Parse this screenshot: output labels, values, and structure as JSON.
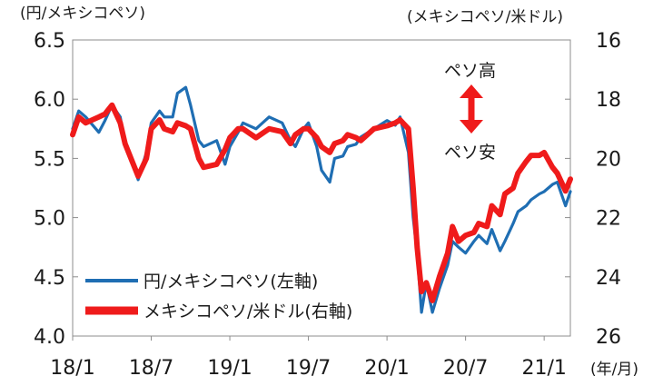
{
  "chart_data": {
    "type": "line",
    "title": "",
    "left_axis": {
      "unit_label": "(円/メキシコペソ)",
      "ylim": [
        4.0,
        6.5
      ],
      "ticks": [
        "6.5",
        "6.0",
        "5.5",
        "5.0",
        "4.5",
        "4.0"
      ]
    },
    "right_axis": {
      "unit_label": "(メキシコペソ/米ドル)",
      "ylim": [
        16,
        26
      ],
      "inverted": true,
      "ticks": [
        "16",
        "18",
        "20",
        "22",
        "24",
        "26"
      ]
    },
    "x_axis": {
      "unit_label": "(年/月)",
      "range": [
        "2018-01",
        "2021-03"
      ],
      "ticks": [
        "18/1",
        "18/7",
        "19/1",
        "19/7",
        "20/1",
        "20/7",
        "21/1"
      ]
    },
    "grid": false,
    "legend_position": "bottom-left",
    "annotations": {
      "up_label": "ペソ高",
      "down_label": "ペソ安"
    },
    "series": [
      {
        "name": "円/メキシコペソ(左軸)",
        "axis": "left",
        "color": "#1f6eb3",
        "points": [
          [
            "2018-01",
            5.75
          ],
          [
            "2018-01-15",
            5.9
          ],
          [
            "2018-02",
            5.85
          ],
          [
            "2018-03",
            5.72
          ],
          [
            "2018-03-15",
            5.82
          ],
          [
            "2018-04",
            5.95
          ],
          [
            "2018-04-20",
            5.85
          ],
          [
            "2018-05",
            5.62
          ],
          [
            "2018-05-20",
            5.45
          ],
          [
            "2018-06",
            5.32
          ],
          [
            "2018-06-20",
            5.55
          ],
          [
            "2018-07",
            5.8
          ],
          [
            "2018-07-20",
            5.9
          ],
          [
            "2018-08",
            5.85
          ],
          [
            "2018-08-20",
            5.85
          ],
          [
            "2018-09",
            6.05
          ],
          [
            "2018-09-20",
            6.1
          ],
          [
            "2018-10",
            5.95
          ],
          [
            "2018-10-20",
            5.65
          ],
          [
            "2018-11",
            5.6
          ],
          [
            "2018-12",
            5.65
          ],
          [
            "2018-12-20",
            5.45
          ],
          [
            "2019-01",
            5.6
          ],
          [
            "2019-01-20",
            5.72
          ],
          [
            "2019-02",
            5.8
          ],
          [
            "2019-03",
            5.75
          ],
          [
            "2019-04",
            5.85
          ],
          [
            "2019-05",
            5.8
          ],
          [
            "2019-05-20",
            5.65
          ],
          [
            "2019-06",
            5.6
          ],
          [
            "2019-06-20",
            5.75
          ],
          [
            "2019-07",
            5.8
          ],
          [
            "2019-07-20",
            5.6
          ],
          [
            "2019-08",
            5.4
          ],
          [
            "2019-08-20",
            5.3
          ],
          [
            "2019-09",
            5.5
          ],
          [
            "2019-09-20",
            5.52
          ],
          [
            "2019-10",
            5.6
          ],
          [
            "2019-10-20",
            5.62
          ],
          [
            "2019-11",
            5.68
          ],
          [
            "2019-12",
            5.75
          ],
          [
            "2020-01",
            5.82
          ],
          [
            "2020-01-20",
            5.78
          ],
          [
            "2020-02",
            5.85
          ],
          [
            "2020-02-20",
            5.55
          ],
          [
            "2020-03",
            5.0
          ],
          [
            "2020-03-10",
            4.7
          ],
          [
            "2020-03-20",
            4.2
          ],
          [
            "2020-04",
            4.45
          ],
          [
            "2020-04-15",
            4.2
          ],
          [
            "2020-05",
            4.4
          ],
          [
            "2020-05-20",
            4.6
          ],
          [
            "2020-06",
            4.8
          ],
          [
            "2020-06-15",
            4.75
          ],
          [
            "2020-07",
            4.7
          ],
          [
            "2020-07-20",
            4.8
          ],
          [
            "2020-08",
            4.85
          ],
          [
            "2020-08-20",
            4.78
          ],
          [
            "2020-09",
            4.9
          ],
          [
            "2020-09-20",
            4.72
          ],
          [
            "2020-10",
            4.8
          ],
          [
            "2020-10-20",
            4.95
          ],
          [
            "2020-11",
            5.05
          ],
          [
            "2020-11-20",
            5.1
          ],
          [
            "2020-12",
            5.15
          ],
          [
            "2020-12-20",
            5.2
          ],
          [
            "2021-01",
            5.22
          ],
          [
            "2021-01-20",
            5.28
          ],
          [
            "2021-02",
            5.3
          ],
          [
            "2021-02-20",
            5.1
          ],
          [
            "2021-03",
            5.22
          ]
        ]
      },
      {
        "name": "メキシコペソ/米ドル(右軸)",
        "axis": "right",
        "color": "#ef1b1b",
        "points": [
          [
            "2018-01",
            19.2
          ],
          [
            "2018-01-15",
            18.6
          ],
          [
            "2018-02",
            18.8
          ],
          [
            "2018-03",
            18.6
          ],
          [
            "2018-03-15",
            18.5
          ],
          [
            "2018-04",
            18.2
          ],
          [
            "2018-04-20",
            18.8
          ],
          [
            "2018-05",
            19.5
          ],
          [
            "2018-05-20",
            20.2
          ],
          [
            "2018-06",
            20.6
          ],
          [
            "2018-06-20",
            20.0
          ],
          [
            "2018-07",
            19.0
          ],
          [
            "2018-07-20",
            18.7
          ],
          [
            "2018-08",
            19.0
          ],
          [
            "2018-08-20",
            19.1
          ],
          [
            "2018-09",
            18.8
          ],
          [
            "2018-09-20",
            18.9
          ],
          [
            "2018-10",
            19.0
          ],
          [
            "2018-10-20",
            20.0
          ],
          [
            "2018-11",
            20.3
          ],
          [
            "2018-12",
            20.2
          ],
          [
            "2018-12-20",
            19.7
          ],
          [
            "2019-01",
            19.3
          ],
          [
            "2019-01-20",
            19.0
          ],
          [
            "2019-02",
            19.0
          ],
          [
            "2019-03",
            19.3
          ],
          [
            "2019-04",
            19.0
          ],
          [
            "2019-05",
            19.1
          ],
          [
            "2019-05-20",
            19.5
          ],
          [
            "2019-06",
            19.2
          ],
          [
            "2019-06-20",
            19.0
          ],
          [
            "2019-07",
            19.0
          ],
          [
            "2019-07-20",
            19.3
          ],
          [
            "2019-08",
            19.6
          ],
          [
            "2019-08-20",
            19.8
          ],
          [
            "2019-09",
            19.5
          ],
          [
            "2019-09-20",
            19.4
          ],
          [
            "2019-10",
            19.2
          ],
          [
            "2019-10-20",
            19.3
          ],
          [
            "2019-11",
            19.4
          ],
          [
            "2019-12",
            19.0
          ],
          [
            "2020-01",
            18.9
          ],
          [
            "2020-01-20",
            18.8
          ],
          [
            "2020-02",
            18.7
          ],
          [
            "2020-02-20",
            19.0
          ],
          [
            "2020-03",
            21.0
          ],
          [
            "2020-03-10",
            23.0
          ],
          [
            "2020-03-20",
            24.5
          ],
          [
            "2020-04",
            24.2
          ],
          [
            "2020-04-15",
            24.8
          ],
          [
            "2020-05",
            24.0
          ],
          [
            "2020-05-20",
            23.2
          ],
          [
            "2020-06",
            22.3
          ],
          [
            "2020-06-15",
            22.8
          ],
          [
            "2020-07",
            22.6
          ],
          [
            "2020-07-20",
            22.5
          ],
          [
            "2020-08",
            22.2
          ],
          [
            "2020-08-20",
            22.3
          ],
          [
            "2020-09",
            21.6
          ],
          [
            "2020-09-20",
            21.9
          ],
          [
            "2020-10",
            21.2
          ],
          [
            "2020-10-20",
            21.0
          ],
          [
            "2020-11",
            20.5
          ],
          [
            "2020-11-20",
            20.1
          ],
          [
            "2020-12",
            19.9
          ],
          [
            "2020-12-20",
            19.9
          ],
          [
            "2021-01",
            19.8
          ],
          [
            "2021-01-20",
            20.3
          ],
          [
            "2021-02",
            20.5
          ],
          [
            "2021-02-20",
            21.1
          ],
          [
            "2021-03",
            20.7
          ]
        ]
      }
    ]
  }
}
